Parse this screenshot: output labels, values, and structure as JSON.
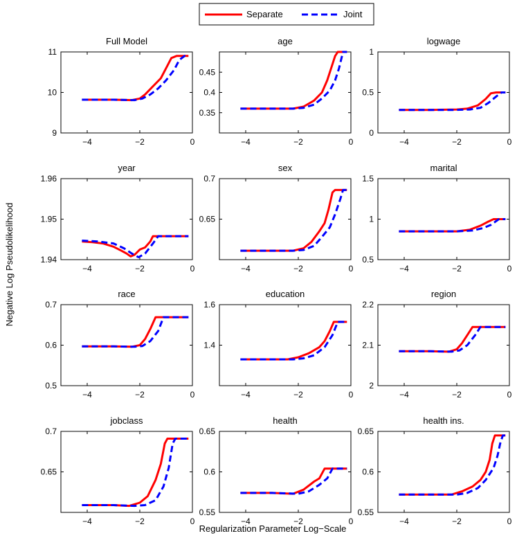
{
  "chart_data": {
    "type": "line",
    "xlabel": "Regularization Parameter Log−Scale",
    "ylabel": "Negative Log Pseudolikelihood",
    "xlim": [
      -5,
      0
    ],
    "xticks": [
      -4,
      -2,
      0
    ],
    "xtick_labels": [
      "−4",
      "−2",
      "0"
    ],
    "legend": {
      "position": "top-center",
      "entries": [
        {
          "name": "Separate",
          "color": "#ff0000",
          "style": "solid"
        },
        {
          "name": "Joint",
          "color": "#0000ff",
          "style": "dashed"
        }
      ]
    },
    "panels": [
      {
        "title": "Full Model",
        "ylim": [
          9,
          11
        ],
        "yticks": [
          9,
          10,
          11
        ],
        "ytick_labels": [
          "9",
          "10",
          "11"
        ],
        "series": [
          {
            "name": "Separate",
            "x": [
              -4.2,
              -3,
              -2.3,
              -2,
              -1.8,
              -1.5,
              -1.2,
              -1,
              -0.8,
              -0.6,
              -0.4,
              -0.15
            ],
            "y": [
              9.82,
              9.82,
              9.81,
              9.85,
              9.95,
              10.15,
              10.35,
              10.6,
              10.85,
              10.9,
              10.9,
              10.9
            ]
          },
          {
            "name": "Joint",
            "x": [
              -4.2,
              -3,
              -2.2,
              -1.9,
              -1.6,
              -1.3,
              -1,
              -0.7,
              -0.5,
              -0.3,
              -0.15
            ],
            "y": [
              9.82,
              9.82,
              9.81,
              9.85,
              9.95,
              10.1,
              10.3,
              10.55,
              10.8,
              10.9,
              10.9
            ]
          }
        ]
      },
      {
        "title": "age",
        "ylim": [
          0.3,
          0.5
        ],
        "yticks": [
          0.35,
          0.4,
          0.45
        ],
        "ytick_labels": [
          "0.35",
          "0.4",
          "0.45"
        ],
        "series": [
          {
            "name": "Separate",
            "x": [
              -4.2,
              -3,
              -2.2,
              -1.8,
              -1.4,
              -1.1,
              -0.9,
              -0.75,
              -0.6,
              -0.5,
              -0.15
            ],
            "y": [
              0.36,
              0.36,
              0.36,
              0.365,
              0.38,
              0.4,
              0.43,
              0.46,
              0.49,
              0.5,
              0.5
            ]
          },
          {
            "name": "Joint",
            "x": [
              -4.2,
              -3,
              -2.2,
              -1.8,
              -1.4,
              -1.1,
              -0.8,
              -0.6,
              -0.45,
              -0.3,
              -0.15
            ],
            "y": [
              0.36,
              0.36,
              0.36,
              0.362,
              0.37,
              0.385,
              0.405,
              0.43,
              0.46,
              0.5,
              0.5
            ]
          }
        ]
      },
      {
        "title": "logwage",
        "ylim": [
          0,
          1
        ],
        "yticks": [
          0,
          0.5,
          1
        ],
        "ytick_labels": [
          "0",
          "0.5",
          "1"
        ],
        "series": [
          {
            "name": "Separate",
            "x": [
              -4.2,
              -3,
              -2,
              -1.6,
              -1.2,
              -0.9,
              -0.7,
              -0.5,
              -0.15
            ],
            "y": [
              0.285,
              0.285,
              0.29,
              0.3,
              0.34,
              0.42,
              0.49,
              0.5,
              0.5
            ]
          },
          {
            "name": "Joint",
            "x": [
              -4.2,
              -3,
              -2,
              -1.5,
              -1.1,
              -0.8,
              -0.5,
              -0.3,
              -0.15
            ],
            "y": [
              0.285,
              0.285,
              0.285,
              0.29,
              0.31,
              0.37,
              0.45,
              0.5,
              0.5
            ]
          }
        ]
      },
      {
        "title": "year",
        "ylim": [
          1.94,
          1.96
        ],
        "yticks": [
          1.94,
          1.95,
          1.96
        ],
        "ytick_labels": [
          "1.94",
          "1.95",
          "1.96"
        ],
        "series": [
          {
            "name": "Separate",
            "x": [
              -4.2,
              -3.8,
              -3.4,
              -3,
              -2.7,
              -2.5,
              -2.35,
              -2.2,
              -2,
              -1.8,
              -1.6,
              -1.5,
              -1.4,
              -0.15
            ],
            "y": [
              1.9445,
              1.9443,
              1.944,
              1.9432,
              1.9422,
              1.9415,
              1.9408,
              1.9412,
              1.9425,
              1.943,
              1.9445,
              1.9458,
              1.9458,
              1.9458
            ]
          },
          {
            "name": "Joint",
            "x": [
              -4.2,
              -3.6,
              -3,
              -2.6,
              -2.3,
              -2.05,
              -1.8,
              -1.5,
              -1.3,
              -0.15
            ],
            "y": [
              1.9447,
              1.9445,
              1.944,
              1.9428,
              1.9415,
              1.9406,
              1.9415,
              1.944,
              1.9458,
              1.9458
            ]
          }
        ]
      },
      {
        "title": "sex",
        "ylim": [
          0.6,
          0.7
        ],
        "yticks": [
          0.65,
          0.7
        ],
        "ytick_labels": [
          "0.65",
          "0.7"
        ],
        "series": [
          {
            "name": "Separate",
            "x": [
              -4.2,
              -3,
              -2.2,
              -1.8,
              -1.5,
              -1.2,
              -1,
              -0.85,
              -0.7,
              -0.6,
              -0.15
            ],
            "y": [
              0.611,
              0.611,
              0.611,
              0.614,
              0.622,
              0.635,
              0.645,
              0.662,
              0.683,
              0.686,
              0.686
            ]
          },
          {
            "name": "Joint",
            "x": [
              -4.2,
              -3,
              -2.2,
              -1.8,
              -1.4,
              -1.1,
              -0.8,
              -0.6,
              -0.4,
              -0.3,
              -0.15
            ],
            "y": [
              0.611,
              0.611,
              0.611,
              0.612,
              0.617,
              0.628,
              0.64,
              0.656,
              0.675,
              0.686,
              0.686
            ]
          }
        ]
      },
      {
        "title": "marital",
        "ylim": [
          0.5,
          1.5
        ],
        "yticks": [
          0.5,
          1,
          1.5
        ],
        "ytick_labels": [
          "0.5",
          "1",
          "1.5"
        ],
        "series": [
          {
            "name": "Separate",
            "x": [
              -4.2,
              -3,
              -2,
              -1.5,
              -1.1,
              -0.8,
              -0.6,
              -0.15
            ],
            "y": [
              0.85,
              0.85,
              0.85,
              0.87,
              0.92,
              0.97,
              1.0,
              1.0
            ]
          },
          {
            "name": "Joint",
            "x": [
              -4.2,
              -3,
              -2,
              -1.4,
              -1,
              -0.7,
              -0.4,
              -0.15
            ],
            "y": [
              0.85,
              0.85,
              0.85,
              0.86,
              0.89,
              0.93,
              1.0,
              1.0
            ]
          }
        ]
      },
      {
        "title": "race",
        "ylim": [
          0.5,
          0.7
        ],
        "yticks": [
          0.5,
          0.6,
          0.7
        ],
        "ytick_labels": [
          "0.5",
          "0.6",
          "0.7"
        ],
        "series": [
          {
            "name": "Separate",
            "x": [
              -4.2,
              -3,
              -2.3,
              -2,
              -1.8,
              -1.6,
              -1.4,
              -0.15
            ],
            "y": [
              0.597,
              0.597,
              0.596,
              0.6,
              0.615,
              0.64,
              0.669,
              0.669
            ]
          },
          {
            "name": "Joint",
            "x": [
              -4.2,
              -3,
              -2.2,
              -1.9,
              -1.6,
              -1.3,
              -1.1,
              -0.15
            ],
            "y": [
              0.597,
              0.597,
              0.596,
              0.598,
              0.61,
              0.635,
              0.669,
              0.669
            ]
          }
        ]
      },
      {
        "title": "education",
        "ylim": [
          1.2,
          1.6
        ],
        "yticks": [
          1.4,
          1.6
        ],
        "ytick_labels": [
          "1.4",
          "1.6"
        ],
        "series": [
          {
            "name": "Separate",
            "x": [
              -4.2,
              -3,
              -2.4,
              -2,
              -1.6,
              -1.2,
              -1,
              -0.8,
              -0.65,
              -0.15
            ],
            "y": [
              1.33,
              1.33,
              1.33,
              1.34,
              1.36,
              1.39,
              1.42,
              1.47,
              1.515,
              1.515
            ]
          },
          {
            "name": "Joint",
            "x": [
              -4.2,
              -3,
              -2.2,
              -1.8,
              -1.4,
              -1,
              -0.7,
              -0.5,
              -0.15
            ],
            "y": [
              1.33,
              1.33,
              1.33,
              1.335,
              1.35,
              1.39,
              1.45,
              1.515,
              1.515
            ]
          }
        ]
      },
      {
        "title": "region",
        "ylim": [
          2,
          2.2
        ],
        "yticks": [
          2,
          2.1,
          2.2
        ],
        "ytick_labels": [
          "2",
          "2.1",
          "2.2"
        ],
        "series": [
          {
            "name": "Separate",
            "x": [
              -4.2,
              -3,
              -2.3,
              -2,
              -1.8,
              -1.6,
              -1.4,
              -0.15
            ],
            "y": [
              2.085,
              2.085,
              2.084,
              2.09,
              2.105,
              2.125,
              2.145,
              2.145
            ]
          },
          {
            "name": "Joint",
            "x": [
              -4.2,
              -3,
              -2.2,
              -1.9,
              -1.6,
              -1.3,
              -1.1,
              -0.15
            ],
            "y": [
              2.085,
              2.085,
              2.084,
              2.087,
              2.1,
              2.125,
              2.145,
              2.145
            ]
          }
        ]
      },
      {
        "title": "jobclass",
        "ylim": [
          0.6,
          0.7
        ],
        "yticks": [
          0.65,
          0.7
        ],
        "ytick_labels": [
          "0.65",
          "0.7"
        ],
        "series": [
          {
            "name": "Separate",
            "x": [
              -4.2,
              -3,
              -2.4,
              -2,
              -1.7,
              -1.4,
              -1.2,
              -1.05,
              -0.95,
              -0.9,
              -0.15
            ],
            "y": [
              0.609,
              0.609,
              0.608,
              0.612,
              0.62,
              0.64,
              0.66,
              0.685,
              0.691,
              0.691,
              0.691
            ]
          },
          {
            "name": "Joint",
            "x": [
              -4.2,
              -3,
              -2.2,
              -1.8,
              -1.4,
              -1.1,
              -0.9,
              -0.75,
              -0.65,
              -0.15
            ],
            "y": [
              0.609,
              0.609,
              0.608,
              0.609,
              0.615,
              0.632,
              0.655,
              0.685,
              0.691,
              0.691
            ]
          }
        ]
      },
      {
        "title": "health",
        "ylim": [
          0.55,
          0.65
        ],
        "yticks": [
          0.55,
          0.6,
          0.65
        ],
        "ytick_labels": [
          "0.55",
          "0.6",
          "0.65"
        ],
        "series": [
          {
            "name": "Separate",
            "x": [
              -4.2,
              -3,
              -2.2,
              -1.8,
              -1.4,
              -1.2,
              -1,
              -0.15
            ],
            "y": [
              0.574,
              0.574,
              0.573,
              0.578,
              0.588,
              0.592,
              0.604,
              0.604
            ]
          },
          {
            "name": "Joint",
            "x": [
              -4.2,
              -3,
              -2,
              -1.6,
              -1.2,
              -0.9,
              -0.7,
              -0.15
            ],
            "y": [
              0.574,
              0.574,
              0.573,
              0.576,
              0.584,
              0.592,
              0.604,
              0.604
            ]
          }
        ]
      },
      {
        "title": "health ins.",
        "ylim": [
          0.55,
          0.65
        ],
        "yticks": [
          0.55,
          0.6,
          0.65
        ],
        "ytick_labels": [
          "0.55",
          "0.6",
          "0.65"
        ],
        "series": [
          {
            "name": "Separate",
            "x": [
              -4.2,
              -3,
              -2.2,
              -1.8,
              -1.4,
              -1.1,
              -0.9,
              -0.75,
              -0.65,
              -0.55,
              -0.15
            ],
            "y": [
              0.572,
              0.572,
              0.572,
              0.576,
              0.582,
              0.59,
              0.6,
              0.615,
              0.635,
              0.645,
              0.645
            ]
          },
          {
            "name": "Joint",
            "x": [
              -4.2,
              -3,
              -2,
              -1.6,
              -1.2,
              -0.9,
              -0.6,
              -0.45,
              -0.35,
              -0.25,
              -0.15
            ],
            "y": [
              0.572,
              0.572,
              0.572,
              0.574,
              0.58,
              0.59,
              0.605,
              0.62,
              0.635,
              0.645,
              0.645
            ]
          }
        ]
      }
    ]
  }
}
